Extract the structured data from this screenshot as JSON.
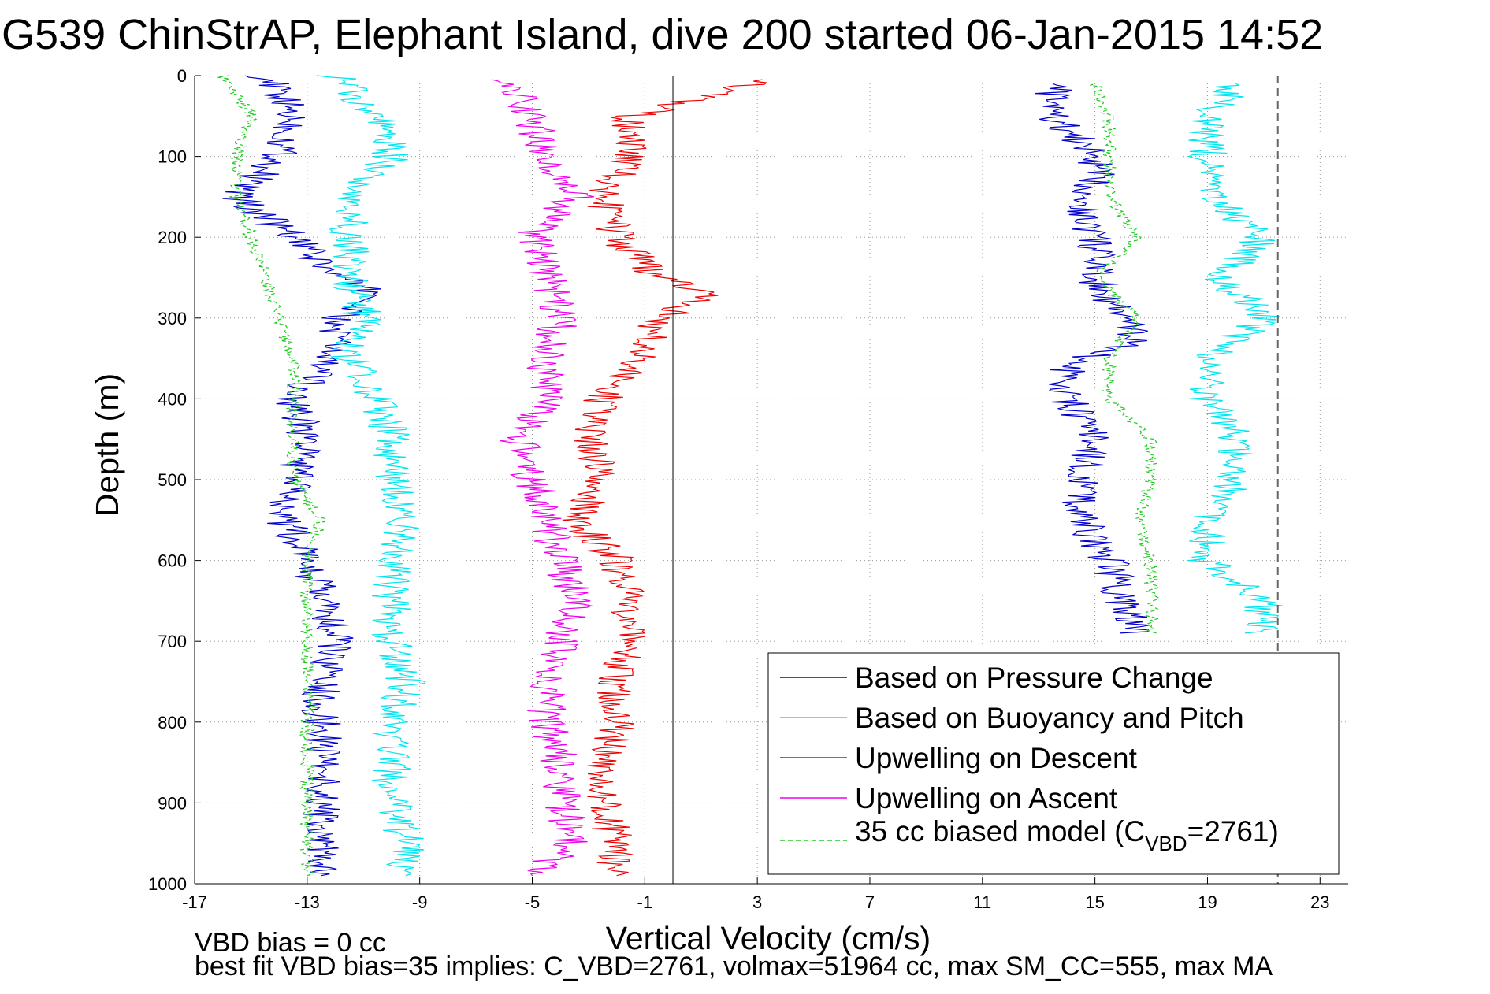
{
  "chart_data": {
    "type": "line",
    "title": "G539 ChinStrAP, Elephant Island, dive 200 started 06-Jan-2015 14:52",
    "xlabel": "Vertical Velocity (cm/s)",
    "ylabel": "Depth (m)",
    "xlim": [
      -17,
      24
    ],
    "ylim": [
      0,
      1000
    ],
    "y_reversed": true,
    "grid": true,
    "x_ticks": [
      -17,
      -13,
      -9,
      -5,
      -1,
      3,
      7,
      11,
      15,
      19,
      23
    ],
    "y_ticks": [
      0,
      100,
      200,
      300,
      400,
      500,
      600,
      700,
      800,
      900,
      1000
    ],
    "reference_lines": {
      "zero_solid_x": 0,
      "dashed_x": 21.5
    },
    "legend": {
      "position": "bottom-right",
      "entries": [
        {
          "label": "Based on Pressure Change",
          "color": "#0000cc",
          "style": "solid"
        },
        {
          "label": "Based on Buoyancy and Pitch",
          "color": "#00e5ee",
          "style": "solid"
        },
        {
          "label": "Upwelling on Descent",
          "color": "#ee0000",
          "style": "solid"
        },
        {
          "label": "Upwelling on Ascent",
          "color": "#ee00ee",
          "style": "solid"
        },
        {
          "label_main": "35 cc biased model (C",
          "label_sub": "VBD",
          "label_tail": "=2761)",
          "color": "#22cc22",
          "style": "dashed"
        }
      ]
    },
    "series": [
      {
        "name": "Based on Pressure Change",
        "segment": "descent",
        "color": "#0000cc",
        "depth": [
          0,
          50,
          100,
          150,
          200,
          250,
          270,
          300,
          330,
          360,
          400,
          450,
          500,
          550,
          600,
          650,
          700,
          750,
          800,
          850,
          900,
          950,
          990
        ],
        "values": [
          -14.5,
          -13.5,
          -14.0,
          -15.5,
          -13.5,
          -12.0,
          -10.5,
          -12.0,
          -12.0,
          -12.5,
          -13.5,
          -13.0,
          -13.5,
          -13.8,
          -13.0,
          -12.5,
          -12.0,
          -12.5,
          -12.5,
          -12.3,
          -12.5,
          -12.5,
          -12.5
        ]
      },
      {
        "name": "Based on Pressure Change",
        "segment": "ascent",
        "color": "#0000cc",
        "depth": [
          690,
          650,
          600,
          550,
          500,
          450,
          400,
          380,
          350,
          330,
          300,
          250,
          200,
          170,
          130,
          100,
          50,
          10
        ],
        "values": [
          16.5,
          16.0,
          15.5,
          14.5,
          14.5,
          15.0,
          14.0,
          13.5,
          14.5,
          16.5,
          16.0,
          15.0,
          15.0,
          14.5,
          15.0,
          15.0,
          13.5,
          13.5
        ]
      },
      {
        "name": "Based on Buoyancy and Pitch",
        "segment": "descent",
        "color": "#00e5ee",
        "depth": [
          0,
          50,
          100,
          150,
          200,
          250,
          300,
          350,
          400,
          450,
          500,
          550,
          600,
          650,
          700,
          750,
          800,
          850,
          900,
          950,
          990
        ],
        "values": [
          -12.0,
          -10.5,
          -10.0,
          -11.5,
          -11.5,
          -11.5,
          -11.0,
          -11.5,
          -10.5,
          -10.0,
          -10.0,
          -9.5,
          -10.0,
          -10.0,
          -10.0,
          -9.5,
          -10.0,
          -10.0,
          -10.0,
          -9.5,
          -9.5
        ]
      },
      {
        "name": "Based on Buoyancy and Pitch",
        "segment": "ascent",
        "color": "#00e5ee",
        "depth": [
          690,
          650,
          600,
          550,
          500,
          450,
          400,
          350,
          300,
          250,
          200,
          150,
          100,
          50,
          10
        ],
        "values": [
          21.0,
          21.0,
          19.0,
          19.0,
          20.0,
          20.0,
          19.0,
          19.0,
          21.0,
          19.5,
          21.0,
          19.0,
          19.0,
          19.0,
          20.0
        ]
      },
      {
        "name": "Upwelling on Descent",
        "color": "#ee0000",
        "depth": [
          5,
          50,
          100,
          150,
          200,
          250,
          270,
          300,
          330,
          350,
          400,
          450,
          500,
          550,
          600,
          650,
          700,
          750,
          800,
          850,
          900,
          950,
          990
        ],
        "values": [
          3.5,
          -1.5,
          -1.5,
          -2.5,
          -2.0,
          -0.5,
          1.5,
          -0.5,
          -1.0,
          -1.0,
          -2.5,
          -3.0,
          -2.5,
          -3.5,
          -2.0,
          -1.5,
          -1.5,
          -2.0,
          -2.0,
          -2.5,
          -2.5,
          -2.0,
          -2.0
        ]
      },
      {
        "name": "Upwelling on Ascent",
        "color": "#ee00ee",
        "depth": [
          5,
          50,
          100,
          150,
          200,
          250,
          300,
          350,
          400,
          450,
          500,
          550,
          600,
          650,
          700,
          750,
          800,
          850,
          900,
          950,
          990
        ],
        "values": [
          -6.0,
          -5.0,
          -4.5,
          -3.5,
          -5.0,
          -4.5,
          -4.0,
          -4.5,
          -4.5,
          -5.5,
          -5.0,
          -4.5,
          -4.0,
          -3.5,
          -4.0,
          -4.5,
          -4.5,
          -4.0,
          -4.0,
          -3.5,
          -5.0
        ]
      },
      {
        "name": "35 cc biased model (C_VBD=2761)",
        "segment": "descent",
        "color": "#22cc22",
        "dashed": true,
        "depth": [
          0,
          50,
          100,
          150,
          200,
          250,
          300,
          350,
          400,
          450,
          500,
          550,
          600,
          650,
          700,
          750,
          800,
          850,
          900,
          950,
          990
        ],
        "values": [
          -16.0,
          -15.0,
          -15.5,
          -15.5,
          -15.0,
          -14.5,
          -14.0,
          -13.5,
          -13.5,
          -13.5,
          -13.5,
          -12.5,
          -13.0,
          -13.0,
          -13.0,
          -13.0,
          -13.0,
          -13.0,
          -13.0,
          -13.0,
          -13.0
        ]
      },
      {
        "name": "35 cc biased model (C_VBD=2761)",
        "segment": "ascent",
        "color": "#22cc22",
        "dashed": true,
        "depth": [
          690,
          650,
          600,
          550,
          500,
          450,
          400,
          350,
          300,
          250,
          200,
          150,
          100,
          50,
          10
        ],
        "values": [
          17.0,
          17.0,
          17.0,
          16.5,
          17.0,
          17.0,
          15.5,
          15.5,
          16.5,
          15.0,
          16.5,
          15.5,
          15.5,
          15.5,
          15.0
        ]
      }
    ],
    "annotations": [
      "VBD bias = 0 cc",
      "best fit VBD bias=35 implies: C_VBD=2761, volmax=51964 cc, max SM_CC=555, max MA"
    ]
  }
}
